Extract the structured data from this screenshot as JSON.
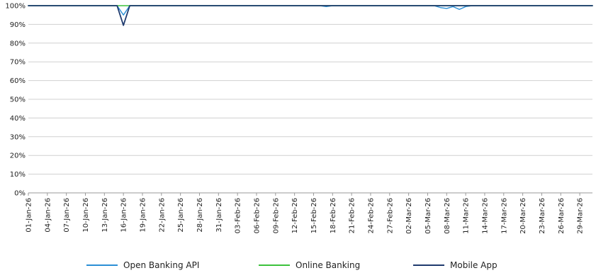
{
  "chart_data": {
    "type": "line",
    "title": "",
    "xlabel": "",
    "ylabel": "",
    "ylim": [
      0,
      100
    ],
    "y_ticks": [
      "0%",
      "10%",
      "20%",
      "30%",
      "40%",
      "50%",
      "60%",
      "70%",
      "80%",
      "90%",
      "100%"
    ],
    "x_start": "01-Jan-26",
    "x_end": "31-Mar-26",
    "x_tick_labels": [
      "01-Jan-26",
      "04-Jan-26",
      "07-Jan-26",
      "10-Jan-26",
      "13-Jan-26",
      "16-Jan-26",
      "19-Jan-26",
      "22-Jan-26",
      "25-Jan-26",
      "28-Jan-26",
      "31-Jan-26",
      "03-Feb-26",
      "06-Feb-26",
      "09-Feb-26",
      "12-Feb-26",
      "15-Feb-26",
      "18-Feb-26",
      "21-Feb-26",
      "24-Feb-26",
      "27-Feb-26",
      "02-Mar-26",
      "05-Mar-26",
      "08-Mar-26",
      "11-Mar-26",
      "14-Mar-26",
      "17-Mar-26",
      "20-Mar-26",
      "23-Mar-26",
      "26-Mar-26",
      "29-Mar-26"
    ],
    "grid": true,
    "legend_position": "bottom",
    "series": [
      {
        "name": "Open Banking API",
        "color": "#2b8fd6",
        "points": [
          {
            "x": "01-Jan-26",
            "y": 100
          },
          {
            "x": "15-Jan-26",
            "y": 100
          },
          {
            "x": "16-Jan-26",
            "y": 95
          },
          {
            "x": "17-Jan-26",
            "y": 100
          },
          {
            "x": "16-Feb-26",
            "y": 100
          },
          {
            "x": "17-Feb-26",
            "y": 99.5
          },
          {
            "x": "18-Feb-26",
            "y": 100
          },
          {
            "x": "06-Mar-26",
            "y": 100
          },
          {
            "x": "07-Mar-26",
            "y": 99
          },
          {
            "x": "08-Mar-26",
            "y": 98.5
          },
          {
            "x": "09-Mar-26",
            "y": 99.5
          },
          {
            "x": "10-Mar-26",
            "y": 98
          },
          {
            "x": "11-Mar-26",
            "y": 99.5
          },
          {
            "x": "12-Mar-26",
            "y": 100
          },
          {
            "x": "31-Mar-26",
            "y": 100
          }
        ]
      },
      {
        "name": "Online Banking",
        "color": "#3cc23c",
        "points": [
          {
            "x": "01-Jan-26",
            "y": 100
          },
          {
            "x": "31-Mar-26",
            "y": 100
          }
        ]
      },
      {
        "name": "Mobile App",
        "color": "#1f3a6e",
        "points": [
          {
            "x": "01-Jan-26",
            "y": 100
          },
          {
            "x": "15-Jan-26",
            "y": 100
          },
          {
            "x": "16-Jan-26",
            "y": 89.5
          },
          {
            "x": "17-Jan-26",
            "y": 100
          },
          {
            "x": "31-Mar-26",
            "y": 100
          }
        ]
      }
    ]
  }
}
